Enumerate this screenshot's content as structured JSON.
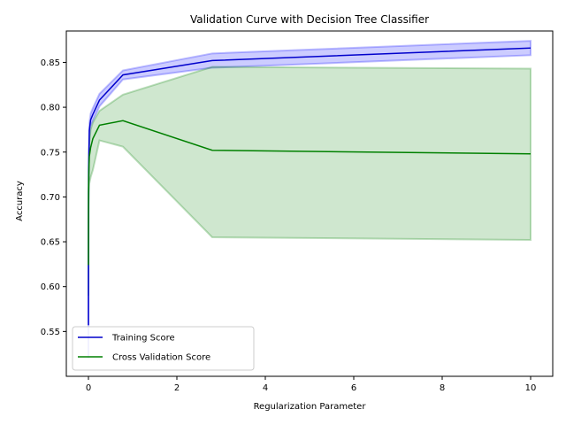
{
  "chart_data": {
    "type": "line",
    "title": "Validation Curve with Decision Tree Classifier",
    "xlabel": "Regularization Parameter",
    "ylabel": "Accuracy",
    "xlim": [
      -0.5,
      10.5
    ],
    "ylim": [
      0.5,
      0.885
    ],
    "xticks": [
      0,
      2,
      4,
      6,
      8,
      10
    ],
    "yticks": [
      0.55,
      0.6,
      0.65,
      0.7,
      0.75,
      0.8,
      0.85
    ],
    "ytick_labels": [
      "0.55",
      "0.60",
      "0.65",
      "0.70",
      "0.75",
      "0.80",
      "0.85"
    ],
    "grid": false,
    "legend_position": "lower-left",
    "x": [
      0.0,
      0.001,
      0.003,
      0.01,
      0.02,
      0.05,
      0.1,
      0.25,
      0.78,
      2.8,
      10.0
    ],
    "series": [
      {
        "name": "Training Score",
        "color": "#0000cc",
        "band_color": "#0000ff",
        "values": [
          0.557,
          0.652,
          0.705,
          0.743,
          0.774,
          0.786,
          0.792,
          0.808,
          0.836,
          0.852,
          0.866
        ],
        "lower": [
          0.52,
          0.64,
          0.695,
          0.735,
          0.766,
          0.779,
          0.785,
          0.801,
          0.831,
          0.844,
          0.858
        ],
        "upper": [
          0.594,
          0.665,
          0.715,
          0.752,
          0.782,
          0.793,
          0.799,
          0.815,
          0.841,
          0.86,
          0.874
        ]
      },
      {
        "name": "Cross Validation Score",
        "color": "#008000",
        "band_color": "#008000",
        "values": [
          0.624,
          0.68,
          0.705,
          0.728,
          0.745,
          0.755,
          0.765,
          0.78,
          0.785,
          0.752,
          0.748
        ],
        "lower": [
          0.59,
          0.65,
          0.69,
          0.705,
          0.715,
          0.722,
          0.73,
          0.763,
          0.756,
          0.655,
          0.652
        ],
        "upper": [
          0.658,
          0.71,
          0.73,
          0.745,
          0.76,
          0.775,
          0.783,
          0.796,
          0.814,
          0.845,
          0.843
        ]
      }
    ]
  }
}
